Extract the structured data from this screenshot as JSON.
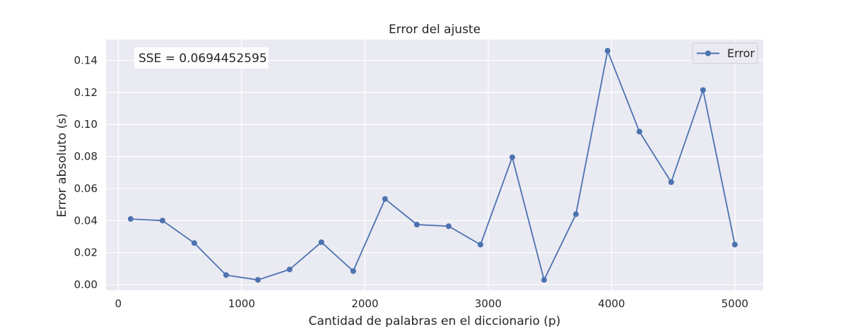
{
  "chart_data": {
    "type": "line",
    "title": "Error del ajuste",
    "xlabel": "Cantidad de palabras en el diccionario (p)",
    "ylabel": "Error absoluto (s)",
    "xlim": [
      -100,
      5230
    ],
    "ylim": [
      -0.0035,
      0.153
    ],
    "x_ticks": [
      0,
      1000,
      2000,
      3000,
      4000,
      5000
    ],
    "x_tick_labels": [
      "0",
      "1000",
      "2000",
      "3000",
      "4000",
      "5000"
    ],
    "y_ticks": [
      0.0,
      0.02,
      0.04,
      0.06,
      0.08,
      0.1,
      0.12,
      0.14
    ],
    "y_tick_labels": [
      "0.00",
      "0.02",
      "0.04",
      "0.06",
      "0.08",
      "0.10",
      "0.12",
      "0.14"
    ],
    "grid": true,
    "legend_position": "top-right",
    "annotation": "SSE = 0.0694452595",
    "series": [
      {
        "name": "Error",
        "color": "#4c72b0",
        "marker": "circle",
        "x": [
          100,
          358,
          616,
          874,
          1132,
          1389,
          1647,
          1905,
          2163,
          2421,
          2679,
          2937,
          3195,
          3453,
          3711,
          3968,
          4226,
          4484,
          4742,
          5000
        ],
        "y": [
          0.041,
          0.04,
          0.026,
          0.006,
          0.003,
          0.0095,
          0.0265,
          0.0085,
          0.0535,
          0.0375,
          0.0365,
          0.025,
          0.0795,
          0.003,
          0.044,
          0.146,
          0.0955,
          0.064,
          0.1215,
          0.025
        ]
      }
    ]
  }
}
